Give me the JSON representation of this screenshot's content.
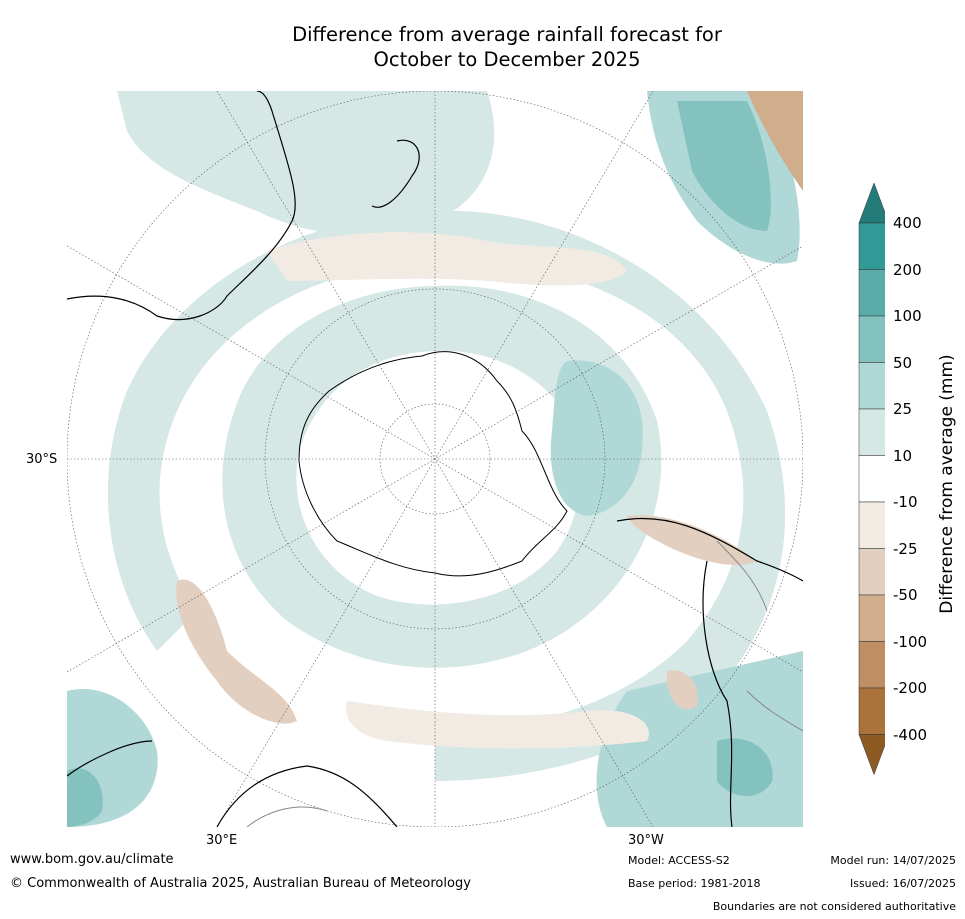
{
  "title": {
    "line1": "Difference from average rainfall forecast for",
    "line2": "October to December 2025"
  },
  "map_labels": {
    "lat_30s": "30°S",
    "lon_30e": "30°E",
    "lon_30w": "30°W"
  },
  "colorbar": {
    "label": "Difference from average (mm)",
    "ticks": [
      "400",
      "200",
      "100",
      "50",
      "25",
      "10",
      "-10",
      "-25",
      "-50",
      "-100",
      "-200",
      "-400"
    ],
    "colors": [
      "#237b7a",
      "#2f9a96",
      "#5aacab",
      "#84c2c0",
      "#b0d8d7",
      "#d5e8e6",
      "#ffffff",
      "#f1ebe4",
      "#e2cfbf",
      "#d0ae8b",
      "#bf8f63",
      "#ab733c",
      "#8d5a23"
    ]
  },
  "footer": {
    "url": "www.bom.gov.au/climate",
    "copyright": "© Commonwealth of Australia 2025, Australian Bureau of Meteorology",
    "model": "Model: ACCESS-S2",
    "base_period": "Base period: 1981-2018",
    "model_run": "Model run: 14/07/2025",
    "issued": "Issued: 16/07/2025",
    "disclaimer": "Boundaries are not considered authoritative"
  }
}
